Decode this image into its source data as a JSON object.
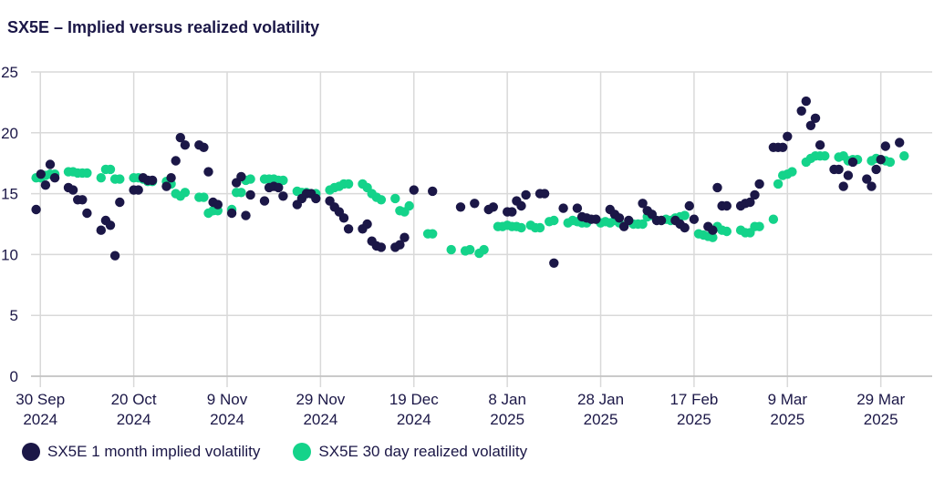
{
  "colors": {
    "implied": "#1b1747",
    "realized": "#14d38a",
    "grid": "#d9d9d9",
    "text": "#1b1747"
  },
  "chart_data": {
    "type": "scatter",
    "title": "SX5E – Implied versus realized volatility",
    "xlabel": "",
    "ylabel": "",
    "x_unit": "days since 30 Sep 2024",
    "xlim": [
      -2,
      191
    ],
    "ylim": [
      0,
      25
    ],
    "y_ticks": [
      "0",
      "5",
      "10",
      "15",
      "20",
      "25"
    ],
    "x_ticks": [
      {
        "day": 0,
        "line1": "30 Sep",
        "line2": "2024"
      },
      {
        "day": 20,
        "line1": "20 Oct",
        "line2": "2024"
      },
      {
        "day": 40,
        "line1": "9 Nov",
        "line2": "2024"
      },
      {
        "day": 60,
        "line1": "29 Nov",
        "line2": "2024"
      },
      {
        "day": 80,
        "line1": "19 Dec",
        "line2": "2024"
      },
      {
        "day": 100,
        "line1": "8 Jan",
        "line2": "2025"
      },
      {
        "day": 120,
        "line1": "28 Jan",
        "line2": "2025"
      },
      {
        "day": 140,
        "line1": "17 Feb",
        "line2": "2025"
      },
      {
        "day": 160,
        "line1": "9 Mar",
        "line2": "2025"
      },
      {
        "day": 180,
        "line1": "29 Mar",
        "line2": "2025"
      }
    ],
    "series": [
      {
        "name": "SX5E 1 month implied volatility",
        "points": [
          [
            -0.9,
            13.7
          ],
          [
            0.1,
            16.6
          ],
          [
            1.1,
            15.7
          ],
          [
            2.1,
            17.4
          ],
          [
            3.1,
            16.3
          ],
          [
            6.0,
            15.5
          ],
          [
            7.0,
            15.3
          ],
          [
            8.0,
            14.5
          ],
          [
            9.0,
            14.5
          ],
          [
            10.0,
            13.4
          ],
          [
            13.0,
            12.0
          ],
          [
            14.0,
            12.8
          ],
          [
            15.0,
            12.4
          ],
          [
            16.0,
            9.9
          ],
          [
            17.0,
            14.3
          ],
          [
            20.0,
            15.3
          ],
          [
            21.0,
            15.3
          ],
          [
            22.0,
            16.3
          ],
          [
            23.0,
            16.1
          ],
          [
            24.0,
            16.1
          ],
          [
            27.0,
            15.6
          ],
          [
            28.0,
            16.3
          ],
          [
            29.0,
            17.7
          ],
          [
            30.0,
            19.6
          ],
          [
            31.0,
            19.0
          ],
          [
            34.0,
            19.0
          ],
          [
            35.0,
            18.8
          ],
          [
            36.0,
            16.8
          ],
          [
            37.0,
            14.3
          ],
          [
            38.0,
            14.1
          ],
          [
            41.0,
            13.4
          ],
          [
            42.0,
            15.9
          ],
          [
            43.0,
            16.4
          ],
          [
            44.0,
            13.2
          ],
          [
            45.0,
            14.9
          ],
          [
            48.0,
            14.4
          ],
          [
            49.0,
            15.5
          ],
          [
            50.0,
            15.6
          ],
          [
            51.0,
            15.5
          ],
          [
            52.0,
            14.8
          ],
          [
            55.0,
            14.1
          ],
          [
            56.0,
            14.6
          ],
          [
            57.0,
            15.0
          ],
          [
            58.0,
            15.0
          ],
          [
            59.0,
            14.6
          ],
          [
            62.0,
            14.4
          ],
          [
            63.0,
            13.9
          ],
          [
            64.0,
            13.5
          ],
          [
            65.0,
            13.0
          ],
          [
            66.0,
            12.1
          ],
          [
            69.0,
            12.1
          ],
          [
            70.0,
            12.5
          ],
          [
            71.0,
            11.1
          ],
          [
            72.0,
            10.7
          ],
          [
            73.0,
            10.6
          ],
          [
            76.0,
            10.6
          ],
          [
            77.0,
            10.8
          ],
          [
            78.0,
            11.4
          ],
          [
            80.0,
            15.3
          ],
          [
            84.0,
            15.2
          ],
          [
            90.0,
            13.9
          ],
          [
            93.0,
            14.2
          ],
          [
            96.0,
            13.7
          ],
          [
            97.0,
            13.9
          ],
          [
            100.0,
            13.5
          ],
          [
            101.0,
            13.5
          ],
          [
            102.0,
            14.4
          ],
          [
            103.0,
            14.0
          ],
          [
            104.0,
            14.9
          ],
          [
            107.0,
            15.0
          ],
          [
            108.0,
            15.0
          ],
          [
            110.0,
            9.3
          ],
          [
            112.0,
            13.8
          ],
          [
            115.0,
            13.8
          ],
          [
            116.0,
            13.1
          ],
          [
            117.0,
            13.0
          ],
          [
            118.0,
            12.9
          ],
          [
            119.0,
            12.9
          ],
          [
            122.0,
            13.7
          ],
          [
            123.0,
            13.3
          ],
          [
            124.0,
            13.0
          ],
          [
            125.0,
            12.3
          ],
          [
            126.0,
            12.8
          ],
          [
            129.0,
            14.2
          ],
          [
            130.0,
            13.6
          ],
          [
            131.0,
            13.3
          ],
          [
            132.0,
            12.8
          ],
          [
            133.0,
            12.8
          ],
          [
            136.0,
            12.8
          ],
          [
            137.0,
            12.5
          ],
          [
            138.0,
            12.2
          ],
          [
            139.0,
            14.0
          ],
          [
            140.0,
            12.9
          ],
          [
            143.0,
            12.3
          ],
          [
            144.0,
            12.0
          ],
          [
            145.0,
            15.5
          ],
          [
            146.0,
            14.0
          ],
          [
            147.0,
            14.0
          ],
          [
            150.0,
            14.0
          ],
          [
            151.0,
            14.2
          ],
          [
            152.0,
            14.3
          ],
          [
            153.0,
            14.9
          ],
          [
            154.0,
            15.8
          ],
          [
            157.0,
            18.8
          ],
          [
            158.0,
            18.8
          ],
          [
            159.0,
            18.8
          ],
          [
            160.0,
            19.7
          ],
          [
            163.0,
            21.8
          ],
          [
            164.0,
            22.6
          ],
          [
            165.0,
            20.6
          ],
          [
            166.0,
            21.2
          ],
          [
            167.0,
            19.0
          ],
          [
            170.0,
            17.0
          ],
          [
            171.0,
            17.0
          ],
          [
            172.0,
            15.6
          ],
          [
            173.0,
            16.5
          ],
          [
            174.0,
            17.6
          ],
          [
            177.0,
            16.2
          ],
          [
            178.0,
            15.6
          ],
          [
            179.0,
            17.0
          ],
          [
            180.0,
            17.8
          ],
          [
            181.0,
            18.9
          ],
          [
            184.0,
            19.2
          ]
        ]
      },
      {
        "name": "SX5E 30 day realized volatility",
        "points": [
          [
            -0.9,
            16.3
          ],
          [
            0.1,
            16.3
          ],
          [
            1.1,
            16.5
          ],
          [
            2.1,
            16.6
          ],
          [
            3.1,
            16.6
          ],
          [
            6.0,
            16.8
          ],
          [
            7.0,
            16.8
          ],
          [
            8.0,
            16.7
          ],
          [
            9.0,
            16.7
          ],
          [
            10.0,
            16.7
          ],
          [
            13.0,
            16.3
          ],
          [
            14.0,
            17.0
          ],
          [
            15.0,
            17.0
          ],
          [
            16.0,
            16.2
          ],
          [
            17.0,
            16.2
          ],
          [
            20.0,
            16.3
          ],
          [
            21.0,
            16.3
          ],
          [
            22.0,
            16.2
          ],
          [
            23.0,
            16.0
          ],
          [
            24.0,
            16.0
          ],
          [
            27.0,
            16.0
          ],
          [
            28.0,
            15.8
          ],
          [
            29.0,
            15.0
          ],
          [
            30.0,
            14.8
          ],
          [
            31.0,
            15.1
          ],
          [
            34.0,
            14.7
          ],
          [
            35.0,
            14.7
          ],
          [
            36.0,
            13.4
          ],
          [
            37.0,
            13.6
          ],
          [
            38.0,
            13.6
          ],
          [
            41.0,
            13.7
          ],
          [
            42.0,
            15.1
          ],
          [
            43.0,
            15.1
          ],
          [
            44.0,
            16.1
          ],
          [
            45.0,
            16.2
          ],
          [
            48.0,
            16.2
          ],
          [
            49.0,
            16.2
          ],
          [
            50.0,
            16.2
          ],
          [
            51.0,
            16.1
          ],
          [
            52.0,
            16.1
          ],
          [
            55.0,
            15.2
          ],
          [
            56.0,
            15.1
          ],
          [
            57.0,
            15.1
          ],
          [
            58.0,
            15.0
          ],
          [
            59.0,
            15.0
          ],
          [
            62.0,
            15.3
          ],
          [
            63.0,
            15.5
          ],
          [
            64.0,
            15.6
          ],
          [
            65.0,
            15.8
          ],
          [
            66.0,
            15.8
          ],
          [
            69.0,
            15.8
          ],
          [
            70.0,
            15.5
          ],
          [
            71.0,
            15.0
          ],
          [
            72.0,
            14.7
          ],
          [
            73.0,
            14.5
          ],
          [
            76.0,
            14.6
          ],
          [
            77.0,
            13.6
          ],
          [
            78.0,
            13.5
          ],
          [
            79.0,
            14.0
          ],
          [
            83.0,
            11.7
          ],
          [
            84.0,
            11.7
          ],
          [
            88.0,
            10.4
          ],
          [
            91.0,
            10.3
          ],
          [
            92.0,
            10.4
          ],
          [
            94.0,
            10.1
          ],
          [
            95.0,
            10.4
          ],
          [
            98.0,
            12.3
          ],
          [
            99.0,
            12.3
          ],
          [
            100.0,
            12.4
          ],
          [
            101.0,
            12.3
          ],
          [
            102.0,
            12.3
          ],
          [
            103.0,
            12.2
          ],
          [
            105.0,
            12.4
          ],
          [
            106.0,
            12.2
          ],
          [
            107.0,
            12.2
          ],
          [
            109.0,
            12.7
          ],
          [
            110.0,
            12.8
          ],
          [
            113.0,
            12.6
          ],
          [
            114.0,
            12.8
          ],
          [
            115.0,
            12.7
          ],
          [
            116.0,
            12.6
          ],
          [
            117.0,
            12.6
          ],
          [
            120.0,
            12.6
          ],
          [
            121.0,
            12.7
          ],
          [
            122.0,
            12.6
          ],
          [
            123.0,
            12.8
          ],
          [
            124.0,
            12.6
          ],
          [
            127.0,
            12.5
          ],
          [
            128.0,
            12.5
          ],
          [
            129.0,
            12.5
          ],
          [
            130.0,
            13.1
          ],
          [
            131.0,
            13.2
          ],
          [
            134.0,
            12.9
          ],
          [
            135.0,
            12.8
          ],
          [
            136.0,
            13.0
          ],
          [
            137.0,
            13.1
          ],
          [
            138.0,
            13.2
          ],
          [
            141.0,
            11.7
          ],
          [
            142.0,
            11.6
          ],
          [
            143.0,
            11.5
          ],
          [
            144.0,
            11.4
          ],
          [
            145.0,
            12.3
          ],
          [
            146.0,
            12.0
          ],
          [
            147.0,
            11.9
          ],
          [
            150.0,
            12.0
          ],
          [
            151.0,
            11.8
          ],
          [
            152.0,
            11.8
          ],
          [
            153.0,
            12.3
          ],
          [
            154.0,
            12.3
          ],
          [
            157.0,
            12.9
          ],
          [
            158.0,
            15.8
          ],
          [
            159.0,
            16.5
          ],
          [
            160.0,
            16.6
          ],
          [
            161.0,
            16.8
          ],
          [
            164.0,
            17.6
          ],
          [
            165.0,
            17.9
          ],
          [
            166.0,
            18.1
          ],
          [
            167.0,
            18.1
          ],
          [
            168.0,
            18.1
          ],
          [
            171.0,
            18.0
          ],
          [
            172.0,
            18.1
          ],
          [
            173.0,
            17.7
          ],
          [
            174.0,
            17.8
          ],
          [
            175.0,
            17.8
          ],
          [
            178.0,
            17.7
          ],
          [
            179.0,
            17.9
          ],
          [
            180.0,
            17.8
          ],
          [
            181.0,
            17.7
          ],
          [
            182.0,
            17.6
          ],
          [
            185.0,
            18.1
          ]
        ]
      }
    ],
    "legend_position": "bottom-left"
  }
}
